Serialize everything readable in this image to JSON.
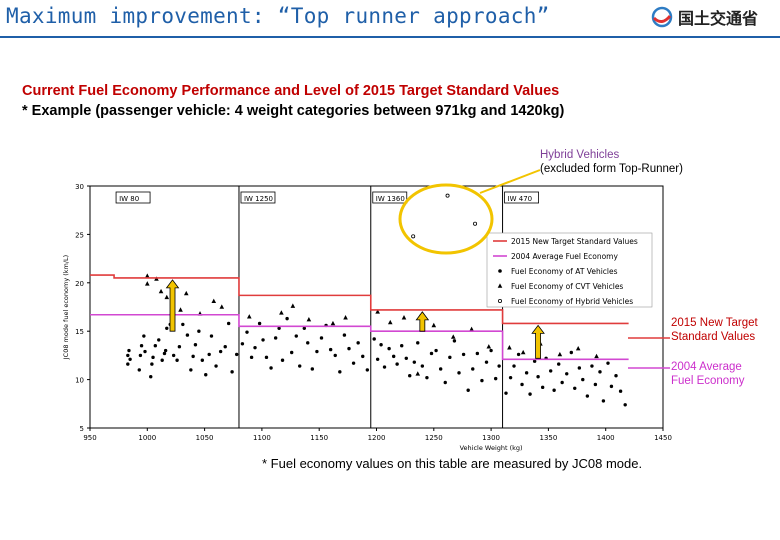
{
  "header": {
    "title": "Maximum improvement: “Top runner approach”",
    "logo_text": "国土交通省"
  },
  "heading": {
    "line1": "Current Fuel Economy Performance and Level of 2015 Target Standard Values",
    "line2": "* Example (passenger vehicle: 4 weight categories between 971kg and 1420kg)"
  },
  "callouts": {
    "hybrid_line1": "Hybrid Vehicles",
    "hybrid_line2": "(excluded form Top-Runner)",
    "target_line1": "2015 New Target",
    "target_line2": "Standard Values",
    "average_line1": "2004 Average",
    "average_line2": "Fuel Economy"
  },
  "footnote": "* Fuel economy values on this table are measured by JC08 mode.",
  "colors": {
    "title": "#1f5fa8",
    "target": "#e03c3c",
    "average": "#d248d2",
    "arrow": "#f2c400",
    "hybrid_circle": "#f2c400",
    "heading_red": "#c00000"
  },
  "chart_data": {
    "type": "scatter",
    "xlabel": "Vehicle Weight (kg)",
    "ylabel": "JC08 mode fuel economy (km/L)",
    "xlim": [
      950,
      1450
    ],
    "ylim": [
      5,
      30
    ],
    "x_ticks": [
      950,
      1000,
      1050,
      1100,
      1150,
      1200,
      1250,
      1300,
      1350,
      1400,
      1450
    ],
    "y_ticks": [
      5,
      10,
      15,
      20,
      25,
      30
    ],
    "grid": false,
    "legend_position": "right",
    "category_labels": [
      "IW 80",
      "IW 1250",
      "IW 1360",
      "IW 470"
    ],
    "category_bounds": [
      971,
      1080,
      1195,
      1310,
      1420
    ],
    "legend": [
      "2015 New Target Standard Values",
      "2004 Average Fuel Economy",
      "Fuel Economy of AT Vehicles",
      "Fuel Economy of CVT Vehicles",
      "Fuel Economy of Hybrid Vehicles"
    ],
    "series": [
      {
        "name": "2015 New Target Standard Values",
        "kind": "step",
        "segments": [
          [
            950,
            971,
            20.8
          ],
          [
            971,
            1080,
            20.5
          ],
          [
            1080,
            1195,
            18.7
          ],
          [
            1195,
            1310,
            17.2
          ],
          [
            1310,
            1420,
            15.8
          ]
        ]
      },
      {
        "name": "2004 Average Fuel Economy",
        "kind": "step",
        "segments": [
          [
            950,
            1080,
            16.7
          ],
          [
            1080,
            1195,
            15.5
          ],
          [
            1195,
            1310,
            15.0
          ],
          [
            1310,
            1420,
            12.1
          ]
        ]
      },
      {
        "name": "Fuel Economy of AT Vehicles",
        "kind": "points",
        "points": [
          [
            983,
            11.6
          ],
          [
            983,
            12.5
          ],
          [
            984,
            13.0
          ],
          [
            985,
            12.1
          ],
          [
            993,
            11.0
          ],
          [
            994,
            12.5
          ],
          [
            995,
            13.5
          ],
          [
            997,
            14.5
          ],
          [
            998,
            12.9
          ],
          [
            1003,
            10.3
          ],
          [
            1004,
            11.6
          ],
          [
            1005,
            12.3
          ],
          [
            1007,
            13.5
          ],
          [
            1010,
            14.1
          ],
          [
            1013,
            12.0
          ],
          [
            1015,
            12.7
          ],
          [
            1016,
            13.0
          ],
          [
            1017,
            15.3
          ],
          [
            1020,
            15.7
          ],
          [
            1023,
            12.5
          ],
          [
            1026,
            12.0
          ],
          [
            1028,
            13.4
          ],
          [
            1031,
            15.7
          ],
          [
            1035,
            14.6
          ],
          [
            1038,
            11.0
          ],
          [
            1040,
            12.4
          ],
          [
            1042,
            13.6
          ],
          [
            1045,
            15.0
          ],
          [
            1048,
            12.0
          ],
          [
            1051,
            10.5
          ],
          [
            1054,
            12.6
          ],
          [
            1056,
            14.5
          ],
          [
            1060,
            11.4
          ],
          [
            1064,
            12.9
          ],
          [
            1068,
            13.4
          ],
          [
            1071,
            15.8
          ],
          [
            1074,
            10.8
          ],
          [
            1078,
            12.6
          ],
          [
            1083,
            13.7
          ],
          [
            1087,
            14.9
          ],
          [
            1091,
            12.3
          ],
          [
            1094,
            13.3
          ],
          [
            1098,
            15.8
          ],
          [
            1101,
            14.1
          ],
          [
            1104,
            12.3
          ],
          [
            1108,
            11.2
          ],
          [
            1112,
            14.3
          ],
          [
            1115,
            15.3
          ],
          [
            1118,
            12.0
          ],
          [
            1122,
            16.3
          ],
          [
            1126,
            12.8
          ],
          [
            1130,
            14.5
          ],
          [
            1133,
            11.4
          ],
          [
            1137,
            15.3
          ],
          [
            1140,
            13.8
          ],
          [
            1144,
            11.1
          ],
          [
            1148,
            12.9
          ],
          [
            1152,
            14.3
          ],
          [
            1156,
            15.6
          ],
          [
            1160,
            13.1
          ],
          [
            1164,
            12.5
          ],
          [
            1168,
            10.8
          ],
          [
            1172,
            14.6
          ],
          [
            1176,
            13.2
          ],
          [
            1180,
            11.7
          ],
          [
            1184,
            13.8
          ],
          [
            1188,
            12.4
          ],
          [
            1192,
            11.0
          ],
          [
            1198,
            14.2
          ],
          [
            1201,
            12.1
          ],
          [
            1204,
            13.6
          ],
          [
            1207,
            11.3
          ],
          [
            1211,
            13.2
          ],
          [
            1215,
            12.4
          ],
          [
            1218,
            11.6
          ],
          [
            1222,
            13.5
          ],
          [
            1226,
            12.2
          ],
          [
            1229,
            10.4
          ],
          [
            1233,
            11.8
          ],
          [
            1236,
            13.8
          ],
          [
            1240,
            11.4
          ],
          [
            1244,
            10.2
          ],
          [
            1248,
            12.7
          ],
          [
            1252,
            13.0
          ],
          [
            1256,
            11.1
          ],
          [
            1260,
            9.7
          ],
          [
            1264,
            12.3
          ],
          [
            1268,
            14.0
          ],
          [
            1272,
            10.7
          ],
          [
            1276,
            12.6
          ],
          [
            1280,
            8.9
          ],
          [
            1284,
            11.1
          ],
          [
            1288,
            12.7
          ],
          [
            1292,
            9.9
          ],
          [
            1296,
            11.8
          ],
          [
            1300,
            13.0
          ],
          [
            1304,
            10.1
          ],
          [
            1307,
            11.4
          ],
          [
            1313,
            8.6
          ],
          [
            1317,
            10.2
          ],
          [
            1320,
            11.4
          ],
          [
            1324,
            12.6
          ],
          [
            1327,
            9.5
          ],
          [
            1331,
            10.7
          ],
          [
            1334,
            8.5
          ],
          [
            1338,
            11.9
          ],
          [
            1341,
            10.3
          ],
          [
            1345,
            9.2
          ],
          [
            1348,
            12.2
          ],
          [
            1352,
            10.9
          ],
          [
            1355,
            8.9
          ],
          [
            1359,
            11.6
          ],
          [
            1362,
            9.7
          ],
          [
            1366,
            10.6
          ],
          [
            1370,
            12.8
          ],
          [
            1373,
            9.1
          ],
          [
            1377,
            11.2
          ],
          [
            1380,
            10.0
          ],
          [
            1384,
            8.3
          ],
          [
            1388,
            11.4
          ],
          [
            1391,
            9.5
          ],
          [
            1395,
            10.8
          ],
          [
            1398,
            7.8
          ],
          [
            1402,
            11.7
          ],
          [
            1405,
            9.3
          ],
          [
            1409,
            10.4
          ],
          [
            1413,
            8.8
          ],
          [
            1417,
            7.4
          ]
        ]
      },
      {
        "name": "Fuel Economy of CVT Vehicles",
        "kind": "points",
        "points": [
          [
            1000,
            20.7
          ],
          [
            1000,
            19.9
          ],
          [
            1008,
            20.4
          ],
          [
            1012,
            19.1
          ],
          [
            1017,
            18.5
          ],
          [
            1022,
            19.6
          ],
          [
            1029,
            17.2
          ],
          [
            1034,
            18.9
          ],
          [
            1046,
            16.8
          ],
          [
            1058,
            18.1
          ],
          [
            1065,
            17.5
          ],
          [
            1089,
            16.5
          ],
          [
            1117,
            16.9
          ],
          [
            1127,
            17.6
          ],
          [
            1141,
            16.2
          ],
          [
            1162,
            15.8
          ],
          [
            1173,
            16.4
          ],
          [
            1201,
            17.0
          ],
          [
            1212,
            15.9
          ],
          [
            1224,
            16.4
          ],
          [
            1238,
            16.5
          ],
          [
            1250,
            15.6
          ],
          [
            1267,
            14.4
          ],
          [
            1283,
            15.2
          ],
          [
            1298,
            13.4
          ],
          [
            1316,
            13.3
          ],
          [
            1328,
            12.8
          ],
          [
            1343,
            13.7
          ],
          [
            1360,
            12.6
          ],
          [
            1376,
            13.2
          ],
          [
            1392,
            12.4
          ],
          [
            1236,
            10.6
          ]
        ]
      },
      {
        "name": "Fuel Economy of Hybrid Vehicles",
        "kind": "points",
        "points": [
          [
            1262,
            29.0
          ],
          [
            1286,
            26.1
          ],
          [
            1232,
            24.8
          ]
        ]
      }
    ]
  }
}
